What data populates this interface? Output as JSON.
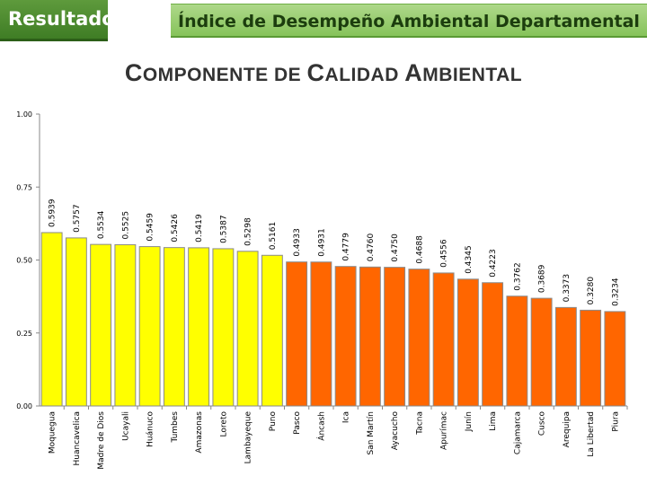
{
  "header": {
    "tab_label": "Resultado",
    "title": "Índice de Desempeño Ambiental Departamental"
  },
  "subtitle": {
    "parts": [
      "C",
      "OMPONENTE DE ",
      "C",
      "ALIDAD ",
      "A",
      "MBIENTAL"
    ]
  },
  "colors": {
    "yellow": "#ffff00",
    "orange": "#ff6600",
    "bar_outline": "#8a8a8a",
    "axis": "#888888"
  },
  "chart_data": {
    "type": "bar",
    "title": "COMPONENTE DE CALIDAD AMBIENTAL",
    "xlabel": "",
    "ylabel": "",
    "ylim": [
      0,
      1
    ],
    "ytick_labels": [
      "0.00",
      "0.25",
      "0.50",
      "0.75",
      "1.00"
    ],
    "yticks": [
      0,
      0.25,
      0.5,
      0.75,
      1.0
    ],
    "categories": [
      "Moquegua",
      "Huancavelica",
      "Madre de Dios",
      "Ucayali",
      "Huánuco",
      "Tumbes",
      "Amazonas",
      "Loreto",
      "Lambayeque",
      "Puno",
      "Pasco",
      "Áncash",
      "Ica",
      "San Martín",
      "Ayacucho",
      "Tacna",
      "Apurímac",
      "Junín",
      "Lima",
      "Cajamarca",
      "Cusco",
      "Arequipa",
      "La Libertad",
      "Piura"
    ],
    "values": [
      0.5939,
      0.5757,
      0.5534,
      0.5525,
      0.5459,
      0.5426,
      0.5419,
      0.5387,
      0.5298,
      0.5161,
      0.4933,
      0.4931,
      0.4779,
      0.476,
      0.475,
      0.4688,
      0.4556,
      0.4345,
      0.4223,
      0.3762,
      0.3689,
      0.3373,
      0.328,
      0.3234
    ],
    "value_labels": [
      "0.5939",
      "0.5757",
      "0.5534",
      "0.5525",
      "0.5459",
      "0.5426",
      "0.5419",
      "0.5387",
      "0.5298",
      "0.5161",
      "0.4933",
      "0.4931",
      "0.4779",
      "0.4760",
      "0.4750",
      "0.4688",
      "0.4556",
      "0.4345",
      "0.4223",
      "0.3762",
      "0.3689",
      "0.3373",
      "0.3280",
      "0.3234"
    ],
    "bar_colors": [
      "yellow",
      "yellow",
      "yellow",
      "yellow",
      "yellow",
      "yellow",
      "yellow",
      "yellow",
      "yellow",
      "yellow",
      "orange",
      "orange",
      "orange",
      "orange",
      "orange",
      "orange",
      "orange",
      "orange",
      "orange",
      "orange",
      "orange",
      "orange",
      "orange",
      "orange"
    ],
    "legend": "none",
    "grid": false
  }
}
